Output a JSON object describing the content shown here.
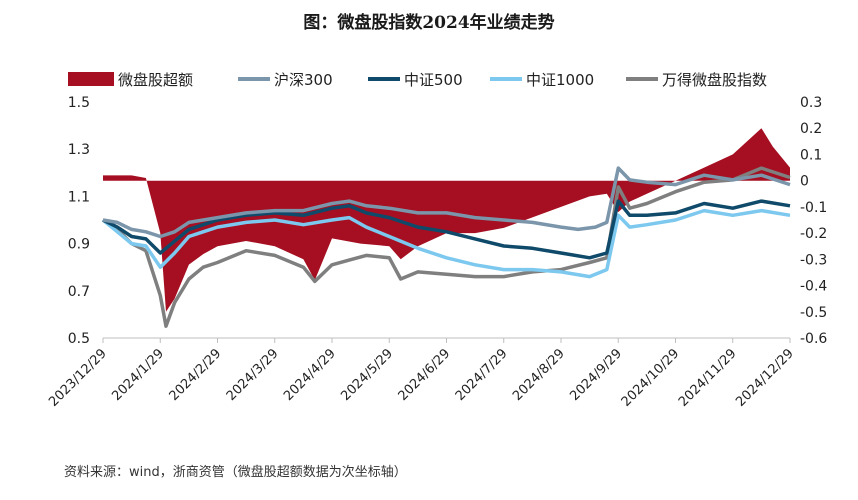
{
  "title": "图：微盘股指数2024年业绩走势",
  "source": "资料来源：wind，浙商资管（微盘股超额数据为次坐标轴）",
  "colors": {
    "excess": "#A50F21",
    "hs300": "#7B95AA",
    "zz500": "#0F4A6A",
    "zz1000": "#7CC8EE",
    "micro": "#7F7F7F",
    "axis": "#bfbfbf"
  },
  "chart_data": {
    "type": "line",
    "x_tick_labels": [
      "2023/12/29",
      "2024/1/29",
      "2024/2/29",
      "2024/3/29",
      "2024/4/29",
      "2024/5/29",
      "2024/6/29",
      "2024/7/29",
      "2024/8/29",
      "2024/9/29",
      "2024/10/29",
      "2024/11/29",
      "2024/12/29"
    ],
    "y_left": {
      "ticks": [
        "1.5",
        "1.3",
        "1.1",
        "0.9",
        "0.7",
        "0.5"
      ],
      "min": 0.5,
      "max": 1.5
    },
    "y_right": {
      "ticks": [
        "0.3",
        "0.2",
        "0.1",
        "0",
        "-0.1",
        "-0.2",
        "-0.3",
        "-0.4",
        "-0.5",
        "-0.6"
      ],
      "min": -0.6,
      "max": 0.3
    },
    "legend": [
      {
        "name": "微盘股超额",
        "kind": "area",
        "color_key": "excess"
      },
      {
        "name": "沪深300",
        "kind": "line",
        "color_key": "hs300"
      },
      {
        "name": "中证500",
        "kind": "line",
        "color_key": "zz500"
      },
      {
        "name": "中证1000",
        "kind": "line",
        "color_key": "zz1000"
      },
      {
        "name": "万得微盘股指数",
        "kind": "line",
        "color_key": "micro"
      }
    ],
    "series": [
      {
        "name": "沪深300",
        "axis": "left",
        "color_key": "hs300",
        "points": [
          [
            0,
            1.0
          ],
          [
            0.25,
            0.99
          ],
          [
            0.5,
            0.96
          ],
          [
            0.75,
            0.95
          ],
          [
            1.0,
            0.93
          ],
          [
            1.25,
            0.95
          ],
          [
            1.5,
            0.99
          ],
          [
            1.75,
            1.0
          ],
          [
            2,
            1.01
          ],
          [
            2.5,
            1.03
          ],
          [
            3,
            1.04
          ],
          [
            3.5,
            1.04
          ],
          [
            4,
            1.07
          ],
          [
            4.3,
            1.08
          ],
          [
            4.6,
            1.06
          ],
          [
            5,
            1.05
          ],
          [
            5.5,
            1.03
          ],
          [
            6,
            1.03
          ],
          [
            6.5,
            1.01
          ],
          [
            7,
            1.0
          ],
          [
            7.5,
            0.99
          ],
          [
            8,
            0.97
          ],
          [
            8.3,
            0.96
          ],
          [
            8.6,
            0.97
          ],
          [
            8.8,
            0.99
          ],
          [
            9.0,
            1.22
          ],
          [
            9.2,
            1.17
          ],
          [
            9.5,
            1.16
          ],
          [
            10,
            1.15
          ],
          [
            10.5,
            1.19
          ],
          [
            11,
            1.17
          ],
          [
            11.5,
            1.19
          ],
          [
            12,
            1.15
          ]
        ]
      },
      {
        "name": "中证500",
        "axis": "left",
        "color_key": "zz500",
        "points": [
          [
            0,
            1.0
          ],
          [
            0.25,
            0.97
          ],
          [
            0.5,
            0.93
          ],
          [
            0.75,
            0.92
          ],
          [
            1.0,
            0.86
          ],
          [
            1.25,
            0.91
          ],
          [
            1.5,
            0.96
          ],
          [
            1.75,
            0.98
          ],
          [
            2,
            1.0
          ],
          [
            2.5,
            1.02
          ],
          [
            3,
            1.03
          ],
          [
            3.5,
            1.02
          ],
          [
            4,
            1.05
          ],
          [
            4.3,
            1.06
          ],
          [
            4.6,
            1.03
          ],
          [
            5,
            1.01
          ],
          [
            5.5,
            0.97
          ],
          [
            6,
            0.95
          ],
          [
            6.5,
            0.92
          ],
          [
            7,
            0.89
          ],
          [
            7.5,
            0.88
          ],
          [
            8,
            0.86
          ],
          [
            8.5,
            0.84
          ],
          [
            8.8,
            0.86
          ],
          [
            9.0,
            1.08
          ],
          [
            9.2,
            1.02
          ],
          [
            9.5,
            1.02
          ],
          [
            10,
            1.03
          ],
          [
            10.5,
            1.07
          ],
          [
            11,
            1.05
          ],
          [
            11.5,
            1.08
          ],
          [
            12,
            1.06
          ]
        ]
      },
      {
        "name": "中证1000",
        "axis": "left",
        "color_key": "zz1000",
        "points": [
          [
            0,
            1.0
          ],
          [
            0.25,
            0.95
          ],
          [
            0.5,
            0.9
          ],
          [
            0.75,
            0.89
          ],
          [
            1.0,
            0.8
          ],
          [
            1.25,
            0.86
          ],
          [
            1.5,
            0.93
          ],
          [
            1.75,
            0.95
          ],
          [
            2,
            0.97
          ],
          [
            2.5,
            0.99
          ],
          [
            3,
            1.0
          ],
          [
            3.5,
            0.98
          ],
          [
            4,
            1.0
          ],
          [
            4.3,
            1.01
          ],
          [
            4.6,
            0.97
          ],
          [
            5,
            0.93
          ],
          [
            5.5,
            0.88
          ],
          [
            6,
            0.84
          ],
          [
            6.5,
            0.81
          ],
          [
            7,
            0.79
          ],
          [
            7.5,
            0.79
          ],
          [
            8,
            0.78
          ],
          [
            8.5,
            0.76
          ],
          [
            8.8,
            0.79
          ],
          [
            9.0,
            1.02
          ],
          [
            9.2,
            0.97
          ],
          [
            9.5,
            0.98
          ],
          [
            10,
            1.0
          ],
          [
            10.5,
            1.04
          ],
          [
            11,
            1.02
          ],
          [
            11.5,
            1.04
          ],
          [
            12,
            1.02
          ]
        ]
      },
      {
        "name": "万得微盘股指数",
        "axis": "left",
        "color_key": "micro",
        "points": [
          [
            0,
            1.0
          ],
          [
            0.25,
            0.96
          ],
          [
            0.5,
            0.9
          ],
          [
            0.75,
            0.87
          ],
          [
            1.0,
            0.68
          ],
          [
            1.1,
            0.55
          ],
          [
            1.25,
            0.65
          ],
          [
            1.5,
            0.75
          ],
          [
            1.75,
            0.8
          ],
          [
            2,
            0.82
          ],
          [
            2.5,
            0.87
          ],
          [
            3,
            0.85
          ],
          [
            3.5,
            0.8
          ],
          [
            3.7,
            0.74
          ],
          [
            4,
            0.81
          ],
          [
            4.3,
            0.83
          ],
          [
            4.6,
            0.85
          ],
          [
            5,
            0.84
          ],
          [
            5.2,
            0.75
          ],
          [
            5.5,
            0.78
          ],
          [
            6,
            0.77
          ],
          [
            6.5,
            0.76
          ],
          [
            7,
            0.76
          ],
          [
            7.5,
            0.78
          ],
          [
            8,
            0.79
          ],
          [
            8.5,
            0.82
          ],
          [
            8.8,
            0.84
          ],
          [
            9.0,
            1.14
          ],
          [
            9.2,
            1.05
          ],
          [
            9.5,
            1.07
          ],
          [
            10,
            1.12
          ],
          [
            10.5,
            1.16
          ],
          [
            11,
            1.17
          ],
          [
            11.5,
            1.22
          ],
          [
            12,
            1.18
          ]
        ]
      },
      {
        "name": "微盘股超额",
        "axis": "right",
        "color_key": "excess",
        "kind": "area",
        "points": [
          [
            0,
            0.02
          ],
          [
            0.5,
            0.02
          ],
          [
            0.75,
            0.01
          ],
          [
            1.0,
            -0.2
          ],
          [
            1.1,
            -0.5
          ],
          [
            1.25,
            -0.45
          ],
          [
            1.5,
            -0.32
          ],
          [
            1.75,
            -0.28
          ],
          [
            2,
            -0.25
          ],
          [
            2.5,
            -0.23
          ],
          [
            3,
            -0.25
          ],
          [
            3.5,
            -0.3
          ],
          [
            3.7,
            -0.38
          ],
          [
            4,
            -0.22
          ],
          [
            4.5,
            -0.24
          ],
          [
            5,
            -0.25
          ],
          [
            5.2,
            -0.3
          ],
          [
            5.5,
            -0.25
          ],
          [
            6,
            -0.2
          ],
          [
            6.5,
            -0.2
          ],
          [
            7,
            -0.18
          ],
          [
            7.5,
            -0.14
          ],
          [
            8,
            -0.1
          ],
          [
            8.5,
            -0.06
          ],
          [
            8.8,
            -0.05
          ],
          [
            9.0,
            -0.12
          ],
          [
            9.2,
            -0.08
          ],
          [
            9.5,
            -0.05
          ],
          [
            10,
            0.0
          ],
          [
            10.5,
            0.05
          ],
          [
            11,
            0.1
          ],
          [
            11.5,
            0.2
          ],
          [
            11.7,
            0.13
          ],
          [
            12,
            0.05
          ]
        ]
      }
    ]
  }
}
